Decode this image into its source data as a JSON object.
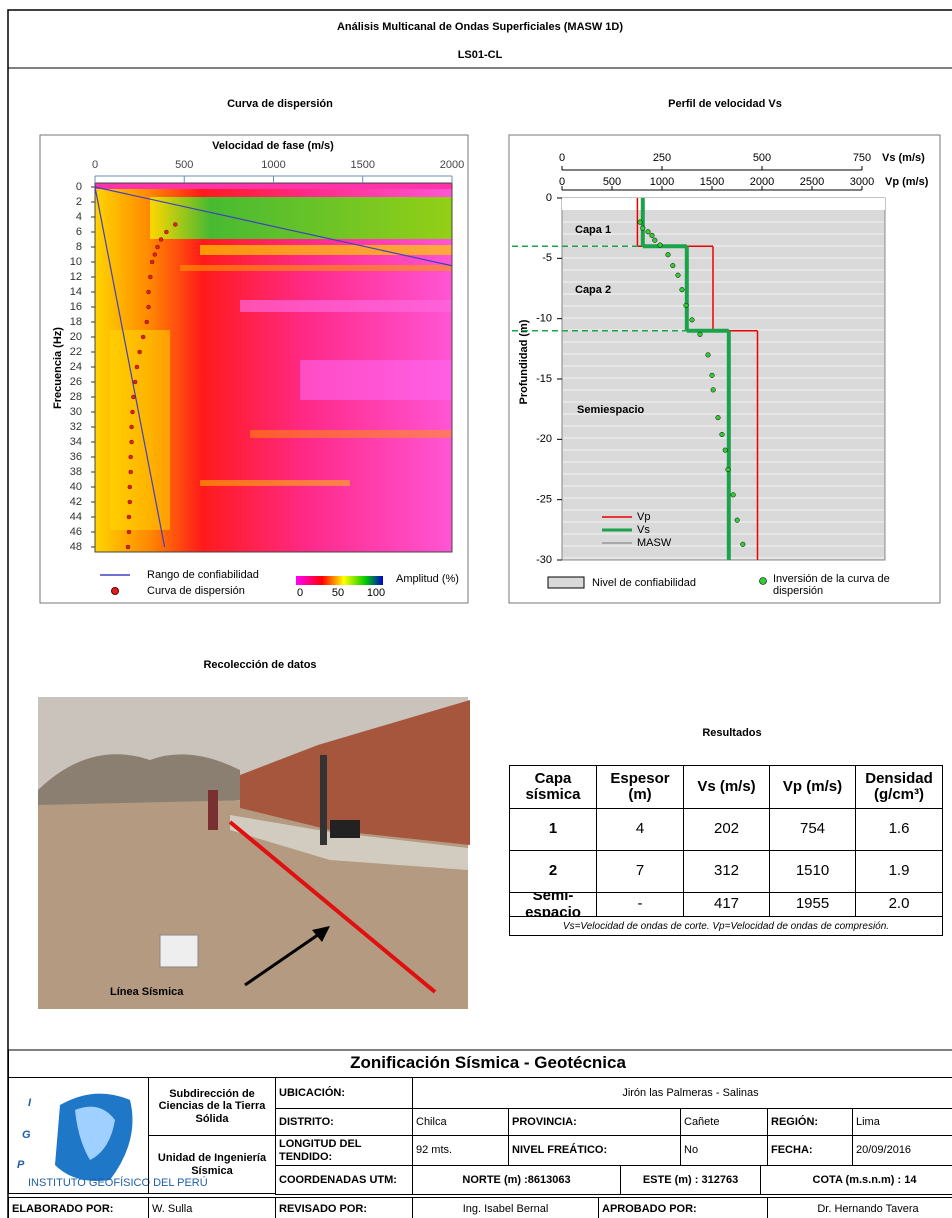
{
  "header": {
    "title": "Análisis Multicanal de Ondas Superficiales (MASW 1D)",
    "code": "LS01-CL"
  },
  "dispersion": {
    "title": "Curva de dispersión",
    "x_label": "Velocidad de fase (m/s)",
    "y_label": "Frecuencia (Hz)",
    "xlim": [
      0,
      2000
    ],
    "xticks": [
      0,
      500,
      1000,
      1500,
      2000
    ],
    "ylim": [
      0,
      48
    ],
    "yticks": [
      0,
      2,
      4,
      6,
      8,
      10,
      12,
      14,
      16,
      18,
      20,
      22,
      24,
      26,
      28,
      30,
      32,
      34,
      36,
      38,
      40,
      42,
      44,
      46,
      48
    ],
    "curve": {
      "frequency": [
        5,
        6,
        7,
        8,
        9,
        10,
        12,
        14,
        16,
        18,
        20,
        22,
        24,
        26,
        28,
        30,
        32,
        34,
        36,
        38,
        40,
        42,
        44,
        46,
        48
      ],
      "velocity": [
        450,
        400,
        370,
        350,
        335,
        320,
        310,
        300,
        300,
        290,
        270,
        250,
        235,
        225,
        215,
        210,
        205,
        205,
        200,
        200,
        195,
        195,
        190,
        190,
        185
      ]
    },
    "confidence_range": [
      {
        "velocity": [
          0,
          2000
        ],
        "frequency": [
          0,
          10.5
        ]
      },
      {
        "velocity": [
          0,
          390
        ],
        "frequency": [
          0,
          48
        ]
      }
    ],
    "legend": {
      "range": "Rango de confiabilidad",
      "curve": "Curva de dispersión",
      "amplitude": "Amplitud (%)",
      "amplitude_ticks": [
        0,
        50,
        100
      ]
    }
  },
  "profile": {
    "title": "Perfil de velocidad Vs",
    "y_label": "Profundidad (m)",
    "vs_label": "Vs (m/s)",
    "vp_label": "Vp (m/s)",
    "vs_lim": [
      0,
      750
    ],
    "vs_ticks": [
      0,
      250,
      500,
      750
    ],
    "vp_lim": [
      0,
      3000
    ],
    "vp_ticks": [
      0,
      500,
      1000,
      1500,
      2000,
      2500,
      3000
    ],
    "ylim": [
      0,
      -30
    ],
    "yticks": [
      0,
      -5,
      -10,
      -15,
      -20,
      -25,
      -30
    ],
    "layer_labels": [
      "Capa 1",
      "Capa 2",
      "Semiespacio"
    ],
    "inversion": {
      "depth": [
        -2,
        -2.5,
        -2.8,
        -3.1,
        -3.5,
        -3.9,
        -4.7,
        -5.6,
        -6.4,
        -7.6,
        -8.9,
        -10.1,
        -11.3,
        -13,
        -14.7,
        -15.9,
        -18.2,
        -19.6,
        -20.9,
        -22.5,
        -24.6,
        -26.7,
        -28.7
      ],
      "vs": [
        195,
        202,
        215,
        225,
        232,
        245,
        265,
        277,
        290,
        300,
        310,
        325,
        345,
        365,
        375,
        378,
        390,
        400,
        408,
        415,
        428,
        438,
        452
      ]
    },
    "legend": {
      "vp": "Vp",
      "vs": "Vs",
      "masw": "MASW",
      "confidence": "Nivel de confiabilidad",
      "inversion": "Inversión de la curva de dispersión"
    }
  },
  "photo": {
    "title": "Recolección de datos",
    "label": "Línea Sísmica"
  },
  "results": {
    "title": "Resultados",
    "headers": [
      "Capa sísmica",
      "Espesor (m)",
      "Vs (m/s)",
      "Vp (m/s)",
      "Densidad (g/cm³)"
    ],
    "rows": [
      [
        "1",
        4,
        202,
        754,
        1.6
      ],
      [
        "2",
        7,
        312,
        1510,
        1.9
      ],
      [
        "Semi-espacio",
        "-",
        417,
        1955,
        {
          "value": 2,
          "label": "2.0"
        }
      ]
    ],
    "note": "Vs=Velocidad de ondas de corte.   Vp=Velocidad de ondas de compresión."
  },
  "footer": {
    "title": "Zonificación Sísmica - Geotécnica",
    "units": [
      "Subdirección de Ciencias de la Tierra Sólida",
      "Unidad de Ingeniería Sísmica"
    ],
    "logo_letters": [
      "I",
      "G",
      "P"
    ],
    "logo_caption": "INSTITUTO GEOFÍSICO DEL PERÚ",
    "rows": [
      [
        "UBICACIÓN:",
        "Jirón las Palmeras - Salinas"
      ],
      [
        "DISTRITO:",
        "Chilca",
        "PROVINCIA:",
        "Cañete",
        "REGIÓN:",
        "Lima"
      ],
      [
        "LONGITUD DEL TENDIDO:",
        "92 mts.",
        "NIVEL FREÁTICO:",
        "No",
        "FECHA:",
        "20/09/2016"
      ],
      [
        "COORDENADAS UTM:",
        "NORTE (m) :8613063",
        "ESTE (m) : 312763",
        "COTA (m.s.n.m) : 14"
      ]
    ],
    "signatures": [
      "ELABORADO POR:",
      "W. Sulla",
      "REVISADO POR:",
      "Ing. Isabel Bernal",
      "APROBADO POR:",
      "Dr. Hernando Tavera"
    ]
  }
}
